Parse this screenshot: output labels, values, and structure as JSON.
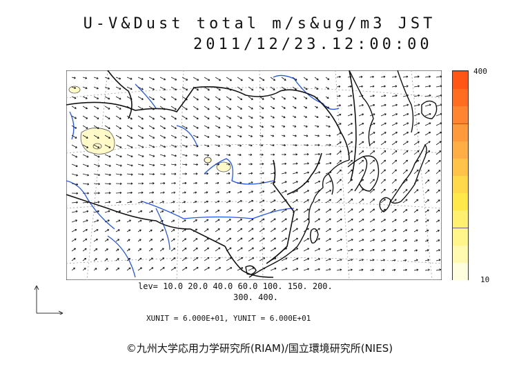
{
  "header": {
    "title": "U-V&Dust total m/s&ug/m3 JST",
    "datetime": "2011/12/23.12:00:00"
  },
  "legend": {
    "lev_line1": "lev= 10.0 20.0 40.0 60.0 100. 150. 200.",
    "lev_line2": "300. 400.",
    "units": "XUNIT = 6.000E+01, YUNIT = 6.000E+01"
  },
  "colorbar": {
    "max_label": "400",
    "min_label": "10",
    "colors": [
      "#ffffe0",
      "#fffab0",
      "#fff58a",
      "#fff070",
      "#ffe94a",
      "#ffd94a",
      "#ffc34a",
      "#ffad45",
      "#ff9a3c",
      "#ff8530",
      "#ff6e20",
      "#ff5515"
    ]
  },
  "credit": "©九州大学応用力学研究所(RIAM)/国立環境研究所(NIES)"
}
